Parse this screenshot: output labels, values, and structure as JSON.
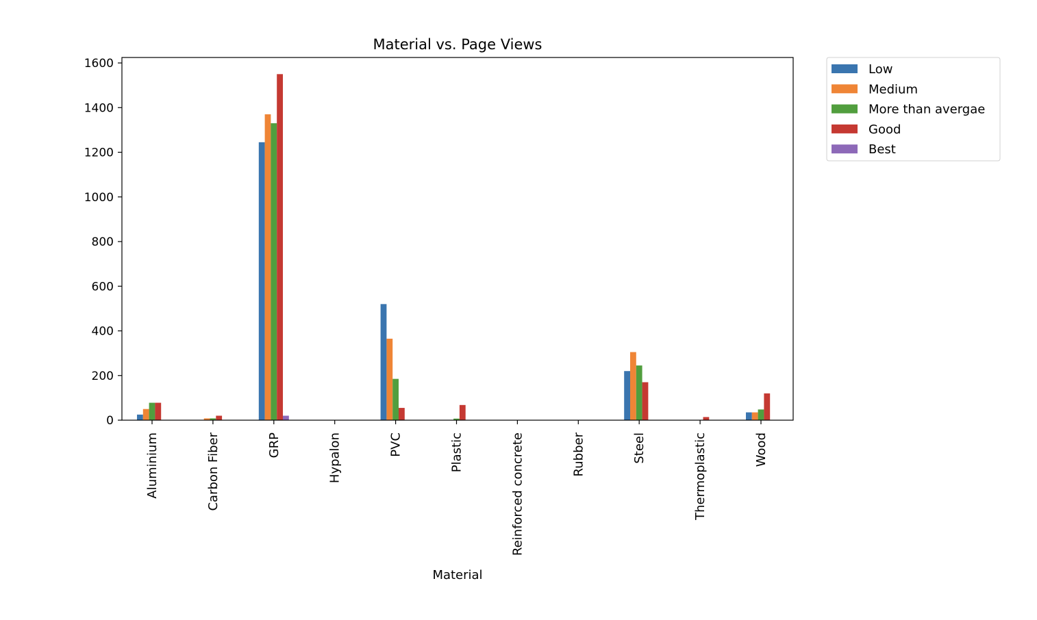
{
  "chart_data": {
    "type": "bar",
    "title": "Material vs. Page Views",
    "xlabel": "Material",
    "ylabel": "",
    "ylim": [
      0,
      1600
    ],
    "yticks": [
      0,
      200,
      400,
      600,
      800,
      1000,
      1200,
      1400,
      1600
    ],
    "grid": false,
    "legend_position": "outside-top-right",
    "categories": [
      "Aluminium",
      "Carbon Fiber",
      "GRP",
      "Hypalon",
      "PVC",
      "Plastic",
      "Reinforced concrete",
      "Rubber",
      "Steel",
      "Thermoplastic",
      "Wood"
    ],
    "series": [
      {
        "name": "Low",
        "color": "#3a75af",
        "values": [
          25,
          0,
          1245,
          0,
          520,
          0,
          0,
          0,
          220,
          0,
          35
        ]
      },
      {
        "name": "Medium",
        "color": "#ef8536",
        "values": [
          50,
          8,
          1370,
          0,
          365,
          0,
          0,
          0,
          305,
          0,
          35
        ]
      },
      {
        "name": "More than avergae",
        "color": "#519e3e",
        "values": [
          78,
          8,
          1330,
          0,
          185,
          7,
          0,
          0,
          245,
          0,
          48
        ]
      },
      {
        "name": "Good",
        "color": "#c53932",
        "values": [
          78,
          20,
          1550,
          0,
          55,
          68,
          0,
          0,
          170,
          14,
          120
        ]
      },
      {
        "name": "Best",
        "color": "#8d69b8",
        "values": [
          0,
          0,
          20,
          0,
          0,
          0,
          0,
          0,
          0,
          0,
          0
        ]
      }
    ]
  }
}
